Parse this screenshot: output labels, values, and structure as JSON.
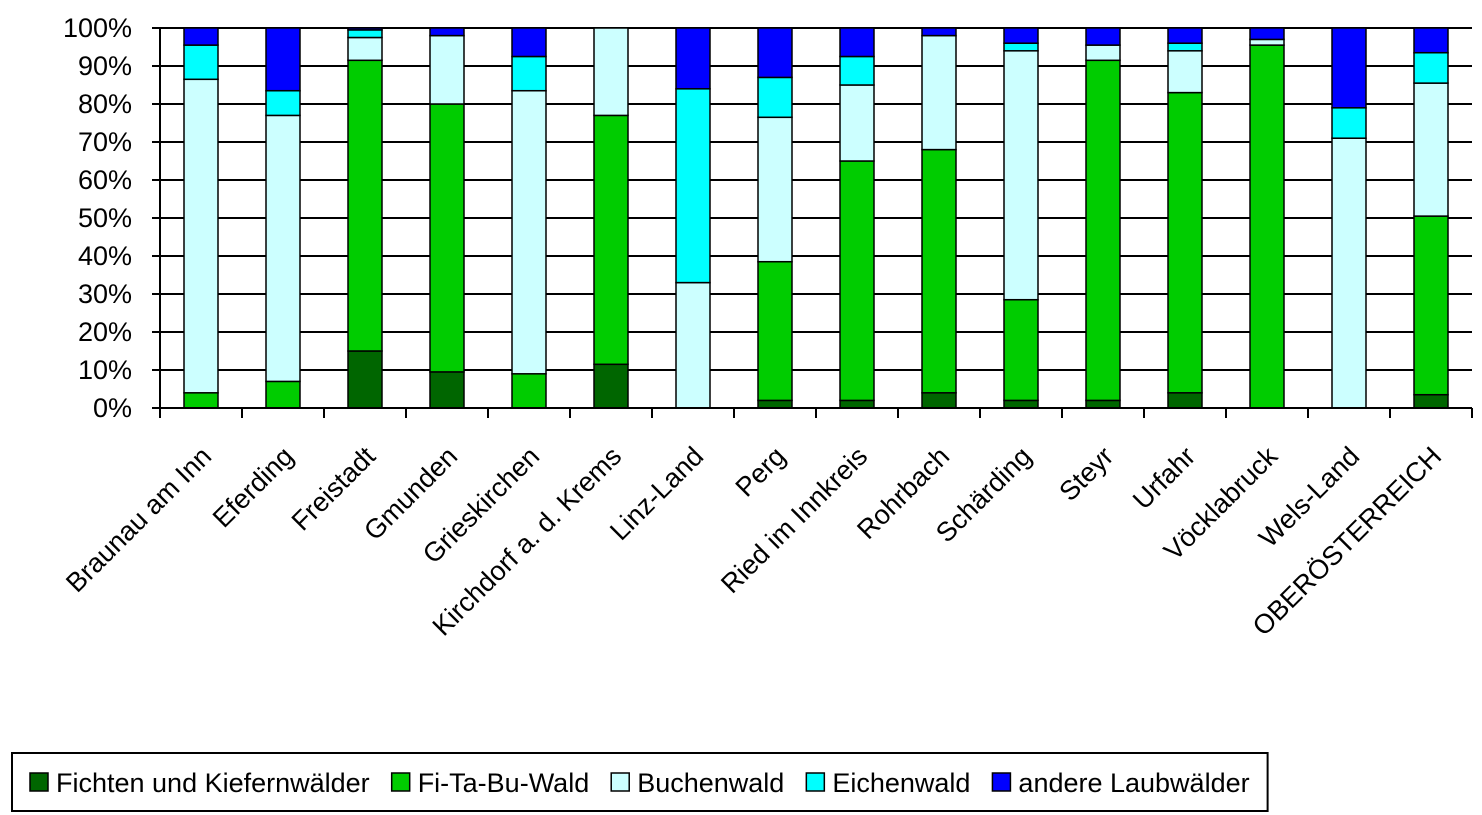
{
  "chart_data": {
    "type": "bar",
    "stacked": true,
    "percent_scale": true,
    "ylim": [
      0,
      100
    ],
    "y_ticks": [
      "0%",
      "10%",
      "20%",
      "30%",
      "40%",
      "50%",
      "60%",
      "70%",
      "80%",
      "90%",
      "100%"
    ],
    "grid": true,
    "legend_position": "bottom",
    "categories": [
      "Braunau am Inn",
      "Eferding",
      "Freistadt",
      "Gmunden",
      "Grieskirchen",
      "Kirchdorf a. d. Krems",
      "Linz-Land",
      "Perg",
      "Ried im Innkreis",
      "Rohrbach",
      "Schärding",
      "Steyr",
      "Urfahr",
      "Vöcklabruck",
      "Wels-Land",
      "OBERÖSTERREICH"
    ],
    "series": [
      {
        "name": "Fichten und Kiefernwälder",
        "color": "#006600",
        "values": [
          0,
          0,
          15,
          9.5,
          0,
          11.5,
          0,
          2,
          2,
          4,
          2,
          2,
          4,
          0,
          0,
          3.5
        ]
      },
      {
        "name": "Fi-Ta-Bu-Wald",
        "color": "#00cc00",
        "values": [
          4,
          7,
          76.5,
          70.5,
          9,
          65.5,
          0,
          36.5,
          63,
          64,
          26.5,
          89.5,
          79,
          95.5,
          0,
          47
        ]
      },
      {
        "name": "Buchenwald",
        "color": "#ccffff",
        "values": [
          82.5,
          70,
          6,
          18,
          74.5,
          23,
          33,
          38,
          20,
          30,
          65.5,
          4,
          11,
          1.5,
          71,
          35
        ]
      },
      {
        "name": "Eichenwald",
        "color": "#00ffff",
        "values": [
          9,
          6.5,
          2,
          0,
          9,
          0,
          51,
          10.5,
          7.5,
          0,
          2,
          0,
          2,
          0,
          8,
          8
        ]
      },
      {
        "name": "andere Laubwälder",
        "color": "#0000ff",
        "values": [
          4.5,
          16.5,
          0.5,
          2,
          7.5,
          0,
          16,
          13,
          7.5,
          2,
          4,
          4.5,
          4,
          3,
          21,
          6.5
        ]
      }
    ]
  }
}
